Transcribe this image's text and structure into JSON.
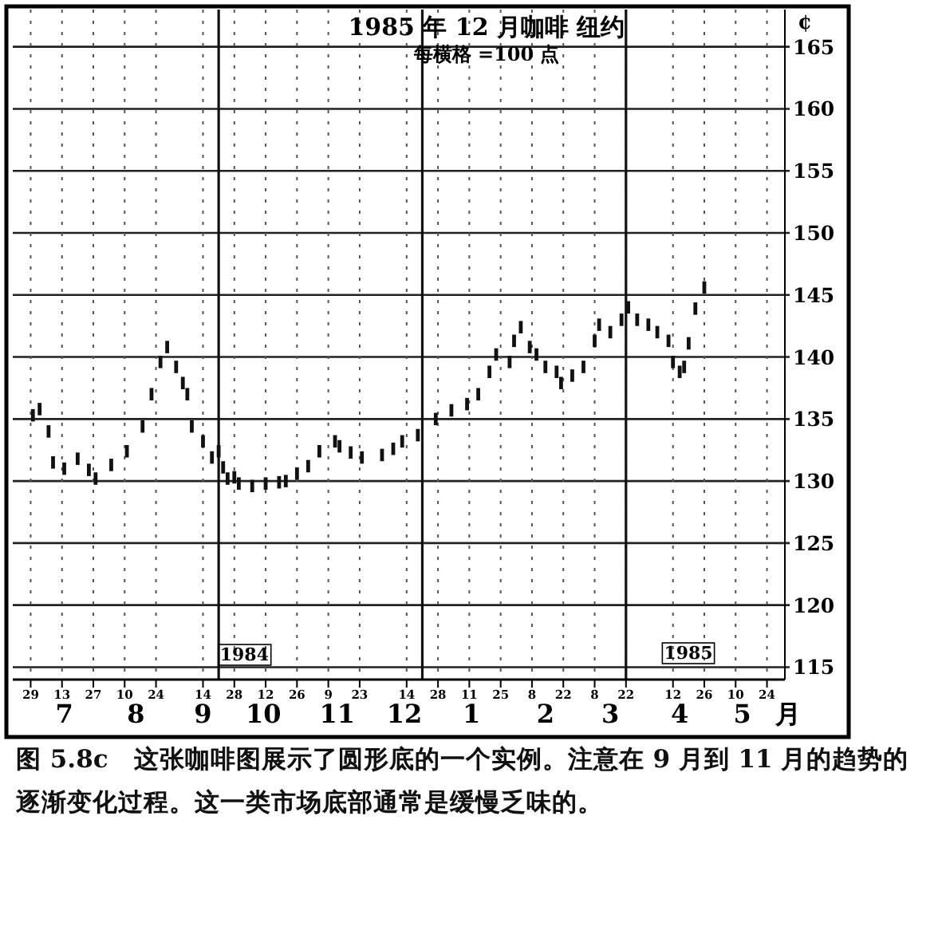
{
  "chart_data": {
    "type": "bar",
    "title": "1985 年 12 月咖啡   纽约",
    "subtitle": "每横格 =100 点",
    "ylabel": "¢",
    "xlabel": "月",
    "x": [
      "1984-06-30",
      "1984-07-03",
      "1984-07-07",
      "1984-07-09",
      "1984-07-14",
      "1984-07-20",
      "1984-07-25",
      "1984-07-28",
      "1984-08-04",
      "1984-08-11",
      "1984-08-18",
      "1984-08-22",
      "1984-08-26",
      "1984-08-29",
      "1984-09-02",
      "1984-09-05",
      "1984-09-07",
      "1984-09-09",
      "1984-09-14",
      "1984-09-18",
      "1984-09-21",
      "1984-09-23",
      "1984-09-25",
      "1984-09-28",
      "1984-09-30",
      "1984-10-06",
      "1984-10-12",
      "1984-10-18",
      "1984-10-21",
      "1984-10-26",
      "1984-10-31",
      "1984-11-05",
      "1984-11-12",
      "1984-11-14",
      "1984-11-19",
      "1984-11-24",
      "1984-12-03",
      "1984-12-08",
      "1984-12-12",
      "1984-12-19",
      "1984-12-27",
      "1985-01-03",
      "1985-01-10",
      "1985-01-15",
      "1985-01-20",
      "1985-01-23",
      "1985-01-29",
      "1985-01-31",
      "1985-02-03",
      "1985-02-07",
      "1985-02-10",
      "1985-02-14",
      "1985-02-19",
      "1985-02-21",
      "1985-02-26",
      "1985-03-03",
      "1985-03-08",
      "1985-03-10",
      "1985-03-15",
      "1985-03-20",
      "1985-03-23",
      "1985-03-27",
      "1985-04-01",
      "1985-04-05",
      "1985-04-10",
      "1985-04-12",
      "1985-04-15",
      "1985-04-17",
      "1985-04-19",
      "1985-04-22",
      "1985-04-26"
    ],
    "base": [
      134.8,
      135.3,
      133.5,
      131,
      130.5,
      131.3,
      130.4,
      129.7,
      130.8,
      131.9,
      133.9,
      136.5,
      139.1,
      140.3,
      138.7,
      137.4,
      136.5,
      133.9,
      132.7,
      131.4,
      131.9,
      130.6,
      129.7,
      129.8,
      129.3,
      129.1,
      129.3,
      129.4,
      129.5,
      130.1,
      130.7,
      131.9,
      132.7,
      132.3,
      131.8,
      131.4,
      131.6,
      132.1,
      132.7,
      133.2,
      134.5,
      135.2,
      135.7,
      136.5,
      138.3,
      139.7,
      139.1,
      140.8,
      141.9,
      140.3,
      139.7,
      138.7,
      138.3,
      137.4,
      138,
      138.7,
      140.8,
      142.1,
      141.5,
      142.5,
      143.5,
      142.5,
      142.1,
      141.5,
      140.8,
      139.1,
      138.3,
      138.7,
      140.6,
      143.4,
      145.1
    ],
    "values": [
      1,
      1,
      1,
      1,
      1,
      1,
      1,
      1,
      1,
      1,
      1,
      1,
      1,
      1,
      1,
      1,
      1,
      1,
      1,
      1,
      1,
      1,
      1,
      1,
      1,
      1,
      1,
      1,
      1,
      1,
      1,
      1,
      1,
      1,
      1,
      1,
      1,
      1,
      1,
      1,
      1,
      1,
      1,
      1,
      1,
      1,
      1,
      1,
      1,
      1,
      1,
      1,
      1,
      1,
      1,
      1,
      1,
      1,
      1,
      1,
      1,
      1,
      1,
      1,
      1,
      1,
      1,
      1,
      1,
      1,
      1
    ],
    "color": "#111111",
    "xlim": [
      "1984-06-21",
      "1985-06-01"
    ],
    "xticks": [
      {
        "value": "1984-06-29",
        "label": "29"
      },
      {
        "value": "1984-07-13",
        "label": "13"
      },
      {
        "value": "1984-07-27",
        "label": "27"
      },
      {
        "value": "1984-08-10",
        "label": "10"
      },
      {
        "value": "1984-08-24",
        "label": "24"
      },
      {
        "value": "1984-09-14",
        "label": "14"
      },
      {
        "value": "1984-09-28",
        "label": "28"
      },
      {
        "value": "1984-10-12",
        "label": "12"
      },
      {
        "value": "1984-10-26",
        "label": "26"
      },
      {
        "value": "1984-11-09",
        "label": "9"
      },
      {
        "value": "1984-11-23",
        "label": "23"
      },
      {
        "value": "1984-12-14",
        "label": "14"
      },
      {
        "value": "1984-12-28",
        "label": "28"
      },
      {
        "value": "1985-01-11",
        "label": "11"
      },
      {
        "value": "1985-01-25",
        "label": "25"
      },
      {
        "value": "1985-02-08",
        "label": "8"
      },
      {
        "value": "1985-02-22",
        "label": "22"
      },
      {
        "value": "1985-03-08",
        "label": "8"
      },
      {
        "value": "1985-03-22",
        "label": "22"
      },
      {
        "value": "1985-04-12",
        "label": "12"
      },
      {
        "value": "1985-04-26",
        "label": "26"
      },
      {
        "value": "1985-05-10",
        "label": "10"
      },
      {
        "value": "1985-05-24",
        "label": "24"
      }
    ],
    "ylim": [
      114,
      168
    ],
    "yticks": [
      115,
      120,
      125,
      130,
      135,
      140,
      145,
      150,
      155,
      160,
      165
    ],
    "grid": true,
    "ref_lines": [
      {
        "axis": "x",
        "value": "1984-09-21"
      },
      {
        "axis": "x",
        "value": "1984-12-21"
      },
      {
        "axis": "x",
        "value": "1985-03-22"
      }
    ],
    "x2lim": [
      "1984-06-21",
      "1985-06-01"
    ],
    "x2ticks": [
      {
        "value": "1984-07-14",
        "label": "7"
      },
      {
        "value": "1984-08-15",
        "label": "8"
      },
      {
        "value": "1984-09-14",
        "label": "9"
      },
      {
        "value": "1984-10-11",
        "label": "10"
      },
      {
        "value": "1984-11-13",
        "label": "11"
      },
      {
        "value": "1984-12-13",
        "label": "12"
      },
      {
        "value": "1985-01-12",
        "label": "1"
      },
      {
        "value": "1985-02-14",
        "label": "2"
      },
      {
        "value": "1985-03-15",
        "label": "3"
      },
      {
        "value": "1985-04-15",
        "label": "4"
      },
      {
        "value": "1985-05-13",
        "label": "5"
      }
    ],
    "annotations": [
      "1984",
      "1985",
      "图 5.8c　这张咖啡图展示了圆形底的一个实例。注意在 9 月到 11 月的趋势的逐渐变化过程。这一类市场底部通常是缓慢乏味的。"
    ]
  }
}
